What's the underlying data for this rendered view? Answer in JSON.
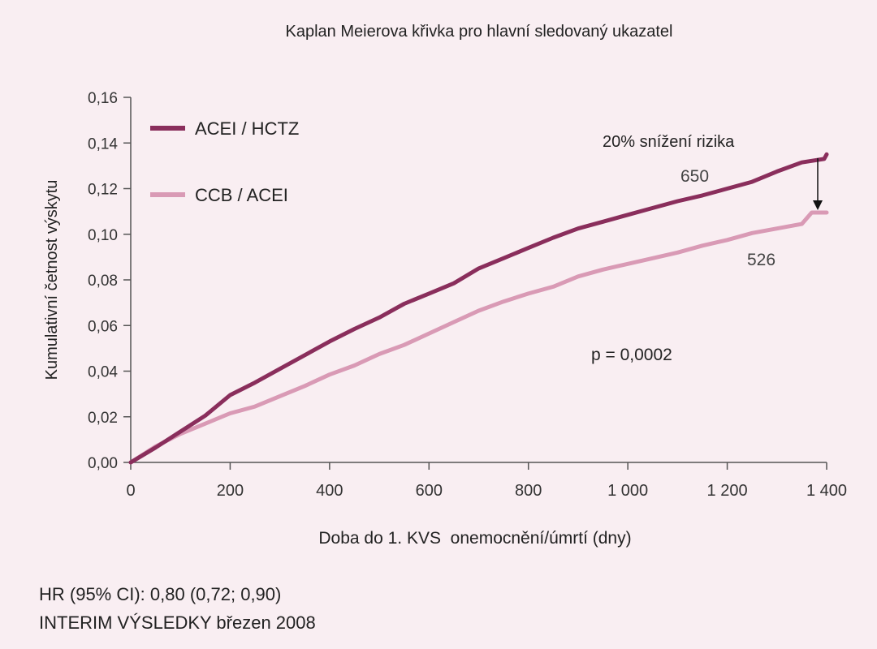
{
  "chart_data": {
    "type": "line",
    "title": "Kaplan Meierova křivka pro hlavní sledovaný ukazatel",
    "xlabel": "Doba do 1. KVS  onemocnění/úmrtí (dny)",
    "ylabel": "Kumulativní četnost výskytu",
    "xlim": [
      0,
      1400
    ],
    "ylim": [
      0,
      0.16
    ],
    "xticks": [
      0,
      200,
      400,
      600,
      800,
      1000,
      1200,
      1400
    ],
    "xtick_labels": [
      "0",
      "200",
      "400",
      "600",
      "800",
      "1 000",
      "1 200",
      "1 400"
    ],
    "yticks": [
      0,
      0.02,
      0.04,
      0.06,
      0.08,
      0.1,
      0.12,
      0.14,
      0.16
    ],
    "ytick_labels": [
      "0,00",
      "0,02",
      "0,04",
      "0,06",
      "0,08",
      "0,10",
      "0,12",
      "0,14",
      "0,16"
    ],
    "grid": false,
    "legend_position": "top-left",
    "series": [
      {
        "name": "ACEI / HCTZ",
        "color": "#8a2e5c",
        "end_label": "650",
        "x": [
          0,
          50,
          100,
          150,
          200,
          250,
          300,
          350,
          400,
          450,
          500,
          550,
          600,
          650,
          700,
          750,
          800,
          850,
          900,
          950,
          1000,
          1050,
          1100,
          1150,
          1200,
          1250,
          1300,
          1350,
          1380,
          1395,
          1400
        ],
        "y": [
          0,
          0.0065,
          0.0135,
          0.0205,
          0.0295,
          0.035,
          0.041,
          0.047,
          0.053,
          0.0585,
          0.0635,
          0.0695,
          0.074,
          0.0785,
          0.085,
          0.0895,
          0.094,
          0.0985,
          0.1025,
          0.1055,
          0.1085,
          0.1115,
          0.1145,
          0.117,
          0.12,
          0.123,
          0.1275,
          0.1315,
          0.1325,
          0.133,
          0.135
        ]
      },
      {
        "name": "CCB / ACEI",
        "color": "#d99ab5",
        "end_label": "526",
        "x": [
          0,
          50,
          100,
          150,
          200,
          250,
          300,
          350,
          400,
          450,
          500,
          550,
          600,
          650,
          700,
          750,
          800,
          850,
          900,
          950,
          1000,
          1050,
          1100,
          1150,
          1200,
          1250,
          1300,
          1350,
          1370,
          1400
        ],
        "y": [
          0,
          0.007,
          0.0125,
          0.017,
          0.0215,
          0.0245,
          0.029,
          0.0335,
          0.0385,
          0.0425,
          0.0475,
          0.0515,
          0.0565,
          0.0615,
          0.0665,
          0.0705,
          0.074,
          0.077,
          0.0815,
          0.0845,
          0.087,
          0.0895,
          0.092,
          0.095,
          0.0975,
          0.1005,
          0.1025,
          0.1045,
          0.1095,
          0.1095
        ]
      }
    ],
    "annotations": {
      "risk_reduction": "20% snížení rizika",
      "p_value": "p = 0,0002"
    }
  },
  "notes": {
    "hr": "HR (95% CI): 0,80 (0,72; 0,90)",
    "interim": "INTERIM VÝSLEDKY březen 2008"
  }
}
